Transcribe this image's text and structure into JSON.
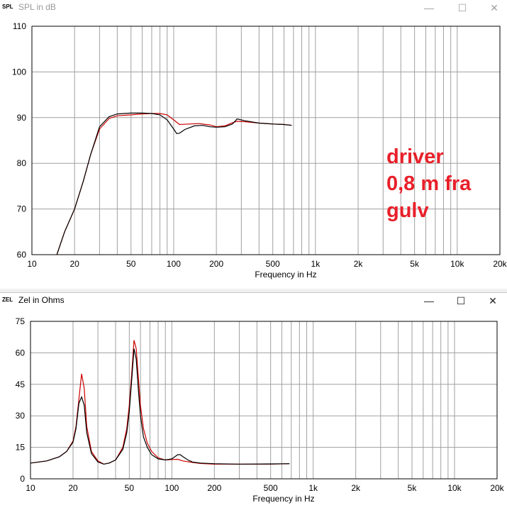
{
  "windows": {
    "spl": {
      "icon_text": "SPL",
      "title": "SPL in dB",
      "buttons": {
        "minimize": "—",
        "maximize": "☐",
        "close": "✕"
      }
    },
    "zel": {
      "icon_text": "ZEL",
      "title": "Zel in Ohms",
      "buttons": {
        "minimize": "—",
        "maximize": "☐",
        "close": "✕"
      }
    }
  },
  "annotation": {
    "lines": [
      "driver",
      "0,8 m fra",
      "gulv"
    ],
    "color": "#e8202a"
  },
  "colors": {
    "grid": "#a0a0a0",
    "axis": "#000000",
    "series_red": "#cc0000",
    "series_black": "#000000"
  },
  "chart_data": [
    {
      "type": "line",
      "title": "SPL in dB",
      "xlabel": "Frequency in Hz",
      "ylabel": "",
      "xscale": "log",
      "xlim": [
        10,
        20000
      ],
      "ylim": [
        60,
        110
      ],
      "x_tick_labels": [
        {
          "v": 10,
          "label": "10"
        },
        {
          "v": 20,
          "label": "20"
        },
        {
          "v": 50,
          "label": "50"
        },
        {
          "v": 100,
          "label": "100"
        },
        {
          "v": 200,
          "label": "200"
        },
        {
          "v": 500,
          "label": "500"
        },
        {
          "v": 1000,
          "label": "1k"
        },
        {
          "v": 2000,
          "label": "2k"
        },
        {
          "v": 5000,
          "label": "5k"
        },
        {
          "v": 10000,
          "label": "10k"
        },
        {
          "v": 20000,
          "label": "20k"
        }
      ],
      "y_ticks": [
        60,
        70,
        80,
        90,
        100,
        110
      ],
      "grid": true,
      "series": [
        {
          "color": "#cc0000",
          "x": [
            15,
            17,
            20,
            23,
            26,
            30,
            35,
            40,
            50,
            60,
            70,
            80,
            90,
            100,
            110,
            130,
            150,
            180,
            200,
            230,
            260,
            280,
            320,
            400,
            500,
            600,
            680
          ],
          "y": [
            60,
            65,
            70,
            76,
            82,
            87.5,
            89.8,
            90.4,
            90.6,
            90.8,
            90.9,
            90.9,
            90.6,
            89.5,
            88.5,
            88.6,
            88.7,
            88.4,
            88.0,
            88.2,
            88.9,
            89.2,
            89.1,
            88.8,
            88.6,
            88.5,
            88.3
          ]
        },
        {
          "color": "#000000",
          "x": [
            15,
            17,
            20,
            23,
            26,
            30,
            35,
            40,
            50,
            60,
            70,
            80,
            90,
            100,
            105,
            110,
            120,
            140,
            160,
            180,
            200,
            230,
            260,
            280,
            320,
            400,
            500,
            600,
            680
          ],
          "y": [
            60,
            65,
            70,
            76,
            82,
            88,
            90.2,
            90.8,
            91.0,
            91.0,
            90.9,
            90.6,
            89.5,
            87.5,
            86.5,
            86.6,
            87.4,
            88.2,
            88.3,
            88.0,
            87.9,
            88.0,
            88.6,
            89.7,
            89.3,
            88.8,
            88.6,
            88.5,
            88.3
          ]
        }
      ]
    },
    {
      "type": "line",
      "title": "Zel in Ohms",
      "xlabel": "Frequency in Hz",
      "ylabel": "",
      "xscale": "log",
      "xlim": [
        10,
        20000
      ],
      "ylim": [
        0,
        75
      ],
      "x_tick_labels": [
        {
          "v": 10,
          "label": "10"
        },
        {
          "v": 20,
          "label": "20"
        },
        {
          "v": 50,
          "label": "50"
        },
        {
          "v": 100,
          "label": "100"
        },
        {
          "v": 200,
          "label": "200"
        },
        {
          "v": 500,
          "label": "500"
        },
        {
          "v": 1000,
          "label": "1k"
        },
        {
          "v": 2000,
          "label": "2k"
        },
        {
          "v": 5000,
          "label": "5k"
        },
        {
          "v": 10000,
          "label": "10k"
        },
        {
          "v": 20000,
          "label": "20k"
        }
      ],
      "y_ticks": [
        0,
        15,
        30,
        45,
        60,
        75
      ],
      "grid": true,
      "series": [
        {
          "color": "#cc0000",
          "x": [
            10,
            13,
            16,
            18,
            20,
            21,
            22,
            23,
            24,
            25,
            27,
            30,
            33,
            36,
            40,
            45,
            48,
            50,
            52,
            54,
            56,
            58,
            60,
            63,
            67,
            72,
            80,
            90,
            100,
            110,
            120,
            140,
            160,
            200,
            300,
            500,
            680
          ],
          "y": [
            7.5,
            8.5,
            10.5,
            13,
            18,
            25,
            38,
            50,
            43,
            25,
            13,
            8.5,
            7,
            7.5,
            9,
            15,
            24,
            35,
            50,
            66,
            62,
            48,
            35,
            24,
            17,
            13,
            10,
            9,
            9.2,
            9.3,
            8.5,
            7.8,
            7.3,
            7.0,
            7.0,
            7.0,
            7.2
          ]
        },
        {
          "color": "#000000",
          "x": [
            10,
            13,
            16,
            18,
            20,
            21,
            22,
            23,
            24,
            25,
            27,
            30,
            33,
            36,
            40,
            45,
            48,
            50,
            52,
            54,
            56,
            58,
            60,
            63,
            67,
            72,
            80,
            90,
            100,
            105,
            110,
            115,
            120,
            130,
            140,
            160,
            200,
            300,
            500,
            680
          ],
          "y": [
            7.5,
            8.5,
            10.5,
            13,
            17.5,
            24,
            36,
            39,
            35,
            22,
            12,
            8,
            7,
            7.5,
            9,
            14,
            22,
            32,
            47,
            62,
            57,
            42,
            30,
            20,
            15,
            11.5,
            9.5,
            9,
            9.5,
            10.5,
            11.5,
            11.5,
            10.5,
            9,
            8,
            7.5,
            7.2,
            7.0,
            7.1,
            7.2
          ]
        }
      ]
    }
  ]
}
